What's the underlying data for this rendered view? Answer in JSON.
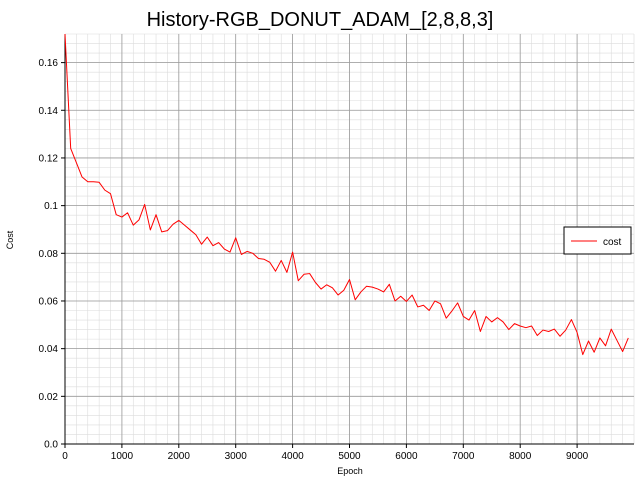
{
  "chart_data": {
    "type": "line",
    "title": "History-RGB_DONUT_ADAM_[2,8,8,3]",
    "xlabel": "Epoch",
    "ylabel": "Cost",
    "xlim": [
      0,
      10000
    ],
    "ylim": [
      0,
      0.172
    ],
    "x_ticks": [
      0,
      1000,
      2000,
      3000,
      4000,
      5000,
      6000,
      7000,
      8000,
      9000
    ],
    "x_tick_labels": [
      "0",
      "1000",
      "2000",
      "3000",
      "4000",
      "5000",
      "6000",
      "7000",
      "8000",
      "9000"
    ],
    "y_ticks": [
      0,
      0.02,
      0.04,
      0.06,
      0.08,
      0.1,
      0.12,
      0.14,
      0.16
    ],
    "y_tick_labels": [
      "0.0",
      "0.02",
      "0.04",
      "0.06",
      "0.08",
      "0.1",
      "0.12",
      "0.14",
      "0.16"
    ],
    "grid": true,
    "minor_grid": true,
    "legend_position": "right",
    "series": [
      {
        "name": "cost",
        "color": "#ff0000",
        "points": [
          [
            0,
            0.172
          ],
          [
            100,
            0.124
          ],
          [
            200,
            0.118
          ],
          [
            300,
            0.112
          ],
          [
            400,
            0.11
          ],
          [
            500,
            0.11
          ],
          [
            600,
            0.1098
          ],
          [
            700,
            0.1065
          ],
          [
            800,
            0.105
          ],
          [
            900,
            0.0962
          ],
          [
            1000,
            0.0952
          ],
          [
            1100,
            0.097
          ],
          [
            1200,
            0.0918
          ],
          [
            1300,
            0.094
          ],
          [
            1400,
            0.1005
          ],
          [
            1500,
            0.0898
          ],
          [
            1600,
            0.0962
          ],
          [
            1700,
            0.089
          ],
          [
            1800,
            0.0895
          ],
          [
            1900,
            0.0922
          ],
          [
            2000,
            0.0938
          ],
          [
            2100,
            0.0918
          ],
          [
            2200,
            0.0898
          ],
          [
            2300,
            0.0878
          ],
          [
            2400,
            0.0838
          ],
          [
            2500,
            0.0868
          ],
          [
            2600,
            0.0832
          ],
          [
            2700,
            0.0845
          ],
          [
            2800,
            0.0818
          ],
          [
            2900,
            0.0805
          ],
          [
            3000,
            0.0865
          ],
          [
            3100,
            0.0795
          ],
          [
            3200,
            0.0808
          ],
          [
            3300,
            0.08
          ],
          [
            3400,
            0.0778
          ],
          [
            3500,
            0.0775
          ],
          [
            3600,
            0.0762
          ],
          [
            3700,
            0.0725
          ],
          [
            3800,
            0.077
          ],
          [
            3900,
            0.072
          ],
          [
            4000,
            0.0805
          ],
          [
            4100,
            0.0685
          ],
          [
            4200,
            0.0712
          ],
          [
            4300,
            0.0715
          ],
          [
            4400,
            0.0678
          ],
          [
            4500,
            0.065
          ],
          [
            4600,
            0.0668
          ],
          [
            4700,
            0.0655
          ],
          [
            4800,
            0.0625
          ],
          [
            4900,
            0.0645
          ],
          [
            5000,
            0.069
          ],
          [
            5100,
            0.0605
          ],
          [
            5200,
            0.0638
          ],
          [
            5300,
            0.0662
          ],
          [
            5400,
            0.0658
          ],
          [
            5500,
            0.065
          ],
          [
            5600,
            0.0638
          ],
          [
            5700,
            0.067
          ],
          [
            5800,
            0.06
          ],
          [
            5900,
            0.062
          ],
          [
            6000,
            0.0598
          ],
          [
            6100,
            0.0625
          ],
          [
            6200,
            0.0575
          ],
          [
            6300,
            0.0582
          ],
          [
            6400,
            0.056
          ],
          [
            6500,
            0.06
          ],
          [
            6600,
            0.0588
          ],
          [
            6700,
            0.0528
          ],
          [
            6800,
            0.0558
          ],
          [
            6900,
            0.0592
          ],
          [
            7000,
            0.0535
          ],
          [
            7100,
            0.052
          ],
          [
            7200,
            0.056
          ],
          [
            7300,
            0.0472
          ],
          [
            7400,
            0.0535
          ],
          [
            7500,
            0.0512
          ],
          [
            7600,
            0.053
          ],
          [
            7700,
            0.0512
          ],
          [
            7800,
            0.048
          ],
          [
            7900,
            0.0505
          ],
          [
            8000,
            0.0495
          ],
          [
            8100,
            0.0488
          ],
          [
            8200,
            0.0495
          ],
          [
            8300,
            0.0455
          ],
          [
            8400,
            0.0478
          ],
          [
            8500,
            0.0472
          ],
          [
            8600,
            0.0482
          ],
          [
            8700,
            0.0452
          ],
          [
            8800,
            0.0478
          ],
          [
            8900,
            0.0522
          ],
          [
            9000,
            0.0468
          ],
          [
            9100,
            0.0375
          ],
          [
            9200,
            0.0432
          ],
          [
            9300,
            0.0385
          ],
          [
            9400,
            0.0445
          ],
          [
            9500,
            0.0412
          ],
          [
            9600,
            0.0482
          ],
          [
            9700,
            0.0435
          ],
          [
            9800,
            0.0388
          ],
          [
            9900,
            0.0445
          ]
        ]
      }
    ]
  }
}
